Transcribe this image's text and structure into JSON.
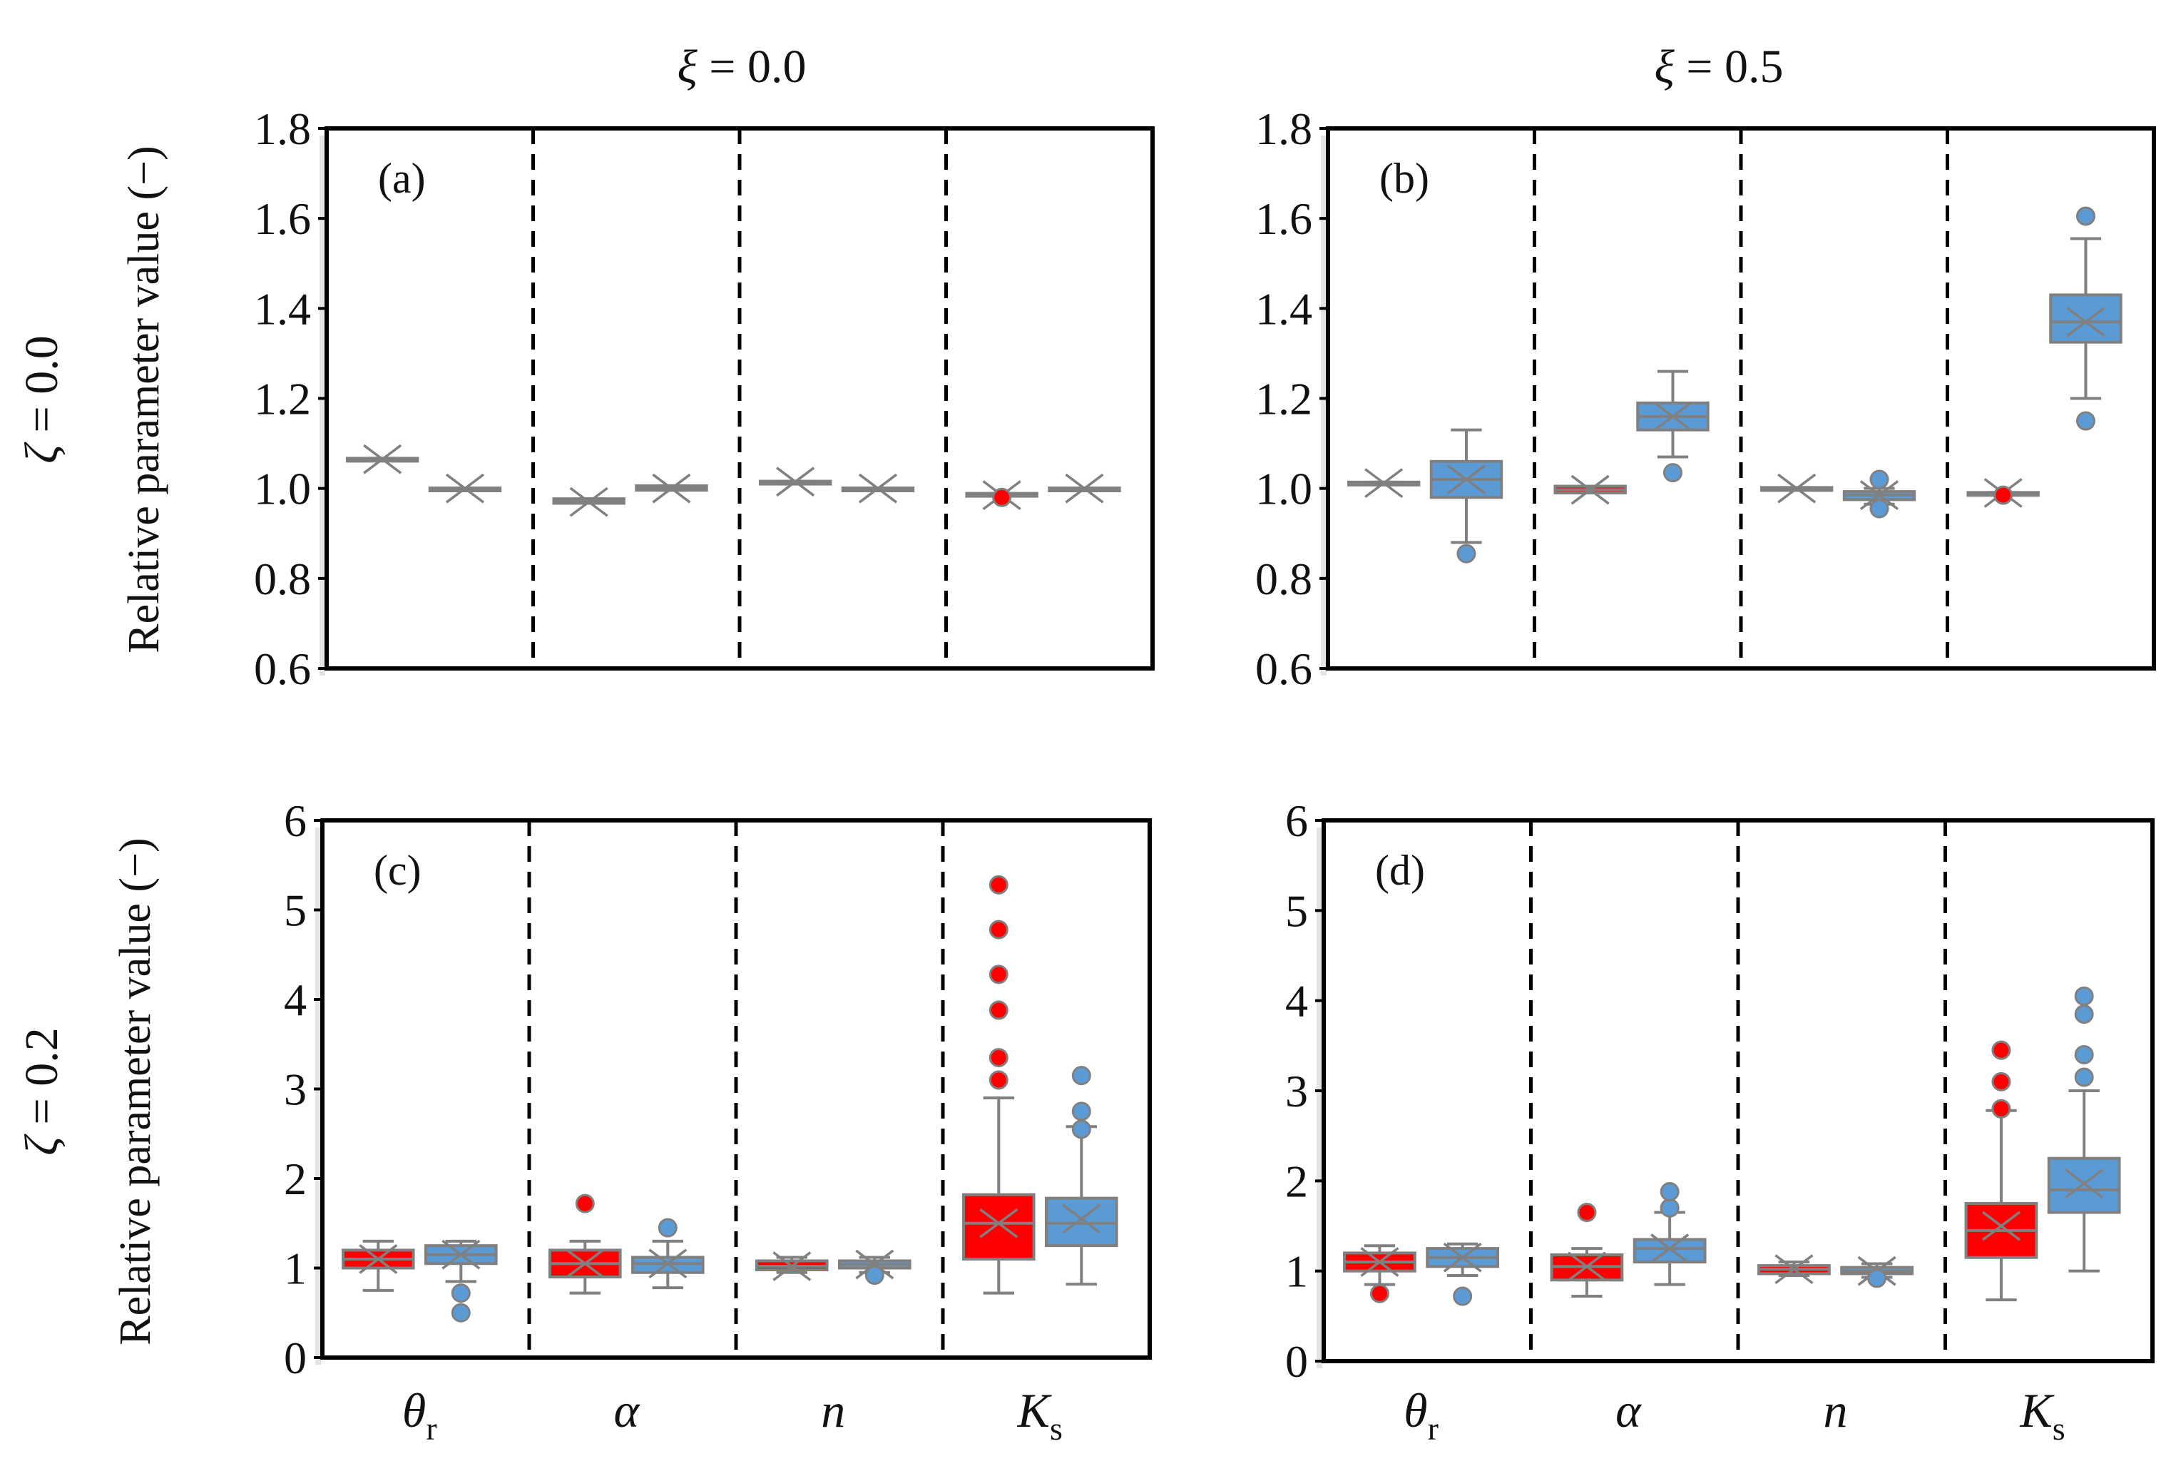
{
  "figure": {
    "col_titles": [
      {
        "var": "ξ",
        "eq": " = 0.0"
      },
      {
        "var": "ξ",
        "eq": " = 0.5"
      }
    ],
    "row_titles": [
      {
        "var": "ζ",
        "eq": " = 0.0"
      },
      {
        "var": "ζ",
        "eq": " = 0.2"
      }
    ],
    "ylabel": "Relative parameter value (−)",
    "categories": [
      {
        "main": "θ",
        "sub": "r"
      },
      {
        "main": "α",
        "sub": ""
      },
      {
        "main": "n",
        "sub": ""
      },
      {
        "main": "K",
        "sub": "s"
      }
    ],
    "colors": {
      "red_series": "#ff0000",
      "blue_series": "#5b9bd5",
      "line": "#808080",
      "axis": "#000000"
    }
  },
  "chart_data": [
    {
      "panel": "(a)",
      "type": "box",
      "ylim": [
        0.6,
        1.8
      ],
      "yticks": [
        "0.6",
        "0.8",
        "1.0",
        "1.2",
        "1.4",
        "1.6",
        "1.8"
      ],
      "yticks_values": [
        0.6,
        0.8,
        1.0,
        1.2,
        1.4,
        1.6,
        1.8
      ],
      "categories": [
        "θr",
        "α",
        "n",
        "Ks"
      ],
      "series": [
        {
          "name": "red",
          "boxes": [
            {
              "q1": 1.063,
              "median": 1.065,
              "q3": 1.067,
              "whislo": 1.063,
              "whishi": 1.067,
              "mean": 1.065,
              "fliers": []
            },
            {
              "q1": 0.967,
              "median": 0.972,
              "q3": 0.977,
              "whislo": 0.967,
              "whishi": 0.977,
              "mean": 0.97,
              "fliers": []
            },
            {
              "q1": 1.014,
              "median": 1.015,
              "q3": 1.016,
              "whislo": 1.014,
              "whishi": 1.016,
              "mean": 1.015,
              "fliers": []
            },
            {
              "q1": 0.987,
              "median": 0.988,
              "q3": 0.989,
              "whislo": 0.987,
              "whishi": 0.989,
              "mean": 0.985,
              "fliers": [
                0.98
              ]
            }
          ]
        },
        {
          "name": "blue",
          "boxes": [
            {
              "q1": 0.999,
              "median": 1.0,
              "q3": 1.001,
              "whislo": 0.999,
              "whishi": 1.001,
              "mean": 1.0,
              "fliers": []
            },
            {
              "q1": 0.996,
              "median": 1.0,
              "q3": 1.006,
              "whislo": 0.996,
              "whishi": 1.006,
              "mean": 1.0,
              "fliers": []
            },
            {
              "q1": 0.999,
              "median": 1.0,
              "q3": 1.001,
              "whislo": 0.999,
              "whishi": 1.001,
              "mean": 1.0,
              "fliers": []
            },
            {
              "q1": 0.999,
              "median": 1.0,
              "q3": 1.001,
              "whislo": 0.999,
              "whishi": 1.001,
              "mean": 1.0,
              "fliers": []
            }
          ]
        }
      ]
    },
    {
      "panel": "(b)",
      "type": "box",
      "ylim": [
        0.6,
        1.8
      ],
      "yticks": [
        "0.6",
        "0.8",
        "1.0",
        "1.2",
        "1.4",
        "1.6",
        "1.8"
      ],
      "yticks_values": [
        0.6,
        0.8,
        1.0,
        1.2,
        1.4,
        1.6,
        1.8
      ],
      "categories": [
        "θr",
        "α",
        "n",
        "Ks"
      ],
      "series": [
        {
          "name": "red",
          "boxes": [
            {
              "q1": 1.01,
              "median": 1.012,
              "q3": 1.014,
              "whislo": 1.01,
              "whishi": 1.014,
              "mean": 1.012,
              "fliers": []
            },
            {
              "q1": 0.99,
              "median": 0.997,
              "q3": 1.005,
              "whislo": 0.99,
              "whishi": 1.005,
              "mean": 0.997,
              "fliers": []
            },
            {
              "q1": 0.998,
              "median": 1.0,
              "q3": 1.002,
              "whislo": 0.998,
              "whishi": 1.002,
              "mean": 1.0,
              "fliers": []
            },
            {
              "q1": 0.99,
              "median": 0.99,
              "q3": 0.991,
              "whislo": 0.99,
              "whishi": 0.991,
              "mean": 0.99,
              "fliers": [
                0.985
              ]
            }
          ]
        },
        {
          "name": "blue",
          "boxes": [
            {
              "q1": 0.98,
              "median": 1.02,
              "q3": 1.06,
              "whislo": 0.88,
              "whishi": 1.13,
              "mean": 1.02,
              "fliers": [
                0.855
              ]
            },
            {
              "q1": 1.13,
              "median": 1.16,
              "q3": 1.19,
              "whislo": 1.07,
              "whishi": 1.26,
              "mean": 1.16,
              "fliers": [
                1.035
              ]
            },
            {
              "q1": 0.975,
              "median": 0.985,
              "q3": 0.993,
              "whislo": 0.965,
              "whishi": 1.0,
              "mean": 0.985,
              "fliers": [
                0.955,
                1.02
              ]
            },
            {
              "q1": 1.325,
              "median": 1.37,
              "q3": 1.43,
              "whislo": 1.2,
              "whishi": 1.555,
              "mean": 1.37,
              "fliers": [
                1.15,
                1.605
              ]
            }
          ]
        }
      ]
    },
    {
      "panel": "(c)",
      "type": "box",
      "ylim": [
        0,
        6
      ],
      "yticks": [
        "0",
        "1",
        "2",
        "3",
        "4",
        "5",
        "6"
      ],
      "yticks_values": [
        0,
        1,
        2,
        3,
        4,
        5,
        6
      ],
      "categories": [
        "θr",
        "α",
        "n",
        "Ks"
      ],
      "series": [
        {
          "name": "red",
          "boxes": [
            {
              "q1": 1.0,
              "median": 1.1,
              "q3": 1.2,
              "whislo": 0.75,
              "whishi": 1.3,
              "mean": 1.1,
              "fliers": []
            },
            {
              "q1": 0.9,
              "median": 1.05,
              "q3": 1.2,
              "whislo": 0.72,
              "whishi": 1.3,
              "mean": 1.05,
              "fliers": [
                1.72
              ]
            },
            {
              "q1": 0.98,
              "median": 1.02,
              "q3": 1.08,
              "whislo": 0.95,
              "whishi": 1.12,
              "mean": 1.02,
              "fliers": []
            },
            {
              "q1": 1.1,
              "median": 1.5,
              "q3": 1.82,
              "whislo": 0.72,
              "whishi": 2.9,
              "mean": 1.5,
              "fliers": [
                3.1,
                3.35,
                3.88,
                4.28,
                4.78,
                5.28
              ]
            }
          ]
        },
        {
          "name": "blue",
          "boxes": [
            {
              "q1": 1.05,
              "median": 1.15,
              "q3": 1.25,
              "whislo": 0.85,
              "whishi": 1.3,
              "mean": 1.15,
              "fliers": [
                0.5,
                0.72
              ]
            },
            {
              "q1": 0.95,
              "median": 1.05,
              "q3": 1.12,
              "whislo": 0.78,
              "whishi": 1.3,
              "mean": 1.05,
              "fliers": [
                1.45
              ]
            },
            {
              "q1": 1.0,
              "median": 1.04,
              "q3": 1.08,
              "whislo": 0.95,
              "whishi": 1.12,
              "mean": 1.04,
              "fliers": [
                0.92
              ]
            },
            {
              "q1": 1.25,
              "median": 1.5,
              "q3": 1.78,
              "whislo": 0.82,
              "whishi": 2.58,
              "mean": 1.55,
              "fliers": [
                2.55,
                2.75,
                3.15
              ]
            }
          ]
        }
      ]
    },
    {
      "panel": "(d)",
      "type": "box",
      "ylim": [
        0,
        6
      ],
      "yticks": [
        "0",
        "1",
        "2",
        "3",
        "4",
        "5",
        "6"
      ],
      "yticks_values": [
        0,
        1,
        2,
        3,
        4,
        5,
        6
      ],
      "categories": [
        "θr",
        "α",
        "n",
        "Ks"
      ],
      "series": [
        {
          "name": "red",
          "boxes": [
            {
              "q1": 1.0,
              "median": 1.1,
              "q3": 1.2,
              "whislo": 0.85,
              "whishi": 1.28,
              "mean": 1.1,
              "fliers": [
                0.75
              ]
            },
            {
              "q1": 0.9,
              "median": 1.05,
              "q3": 1.18,
              "whislo": 0.72,
              "whishi": 1.25,
              "mean": 1.05,
              "fliers": [
                1.65
              ]
            },
            {
              "q1": 0.97,
              "median": 1.02,
              "q3": 1.06,
              "whislo": 0.95,
              "whishi": 1.1,
              "mean": 1.02,
              "fliers": []
            },
            {
              "q1": 1.15,
              "median": 1.45,
              "q3": 1.75,
              "whislo": 0.68,
              "whishi": 2.78,
              "mean": 1.5,
              "fliers": [
                2.8,
                3.1,
                3.45
              ]
            }
          ]
        },
        {
          "name": "blue",
          "boxes": [
            {
              "q1": 1.05,
              "median": 1.15,
              "q3": 1.25,
              "whislo": 0.95,
              "whishi": 1.3,
              "mean": 1.15,
              "fliers": [
                0.72
              ]
            },
            {
              "q1": 1.1,
              "median": 1.25,
              "q3": 1.35,
              "whislo": 0.85,
              "whishi": 1.65,
              "mean": 1.25,
              "fliers": [
                1.7,
                1.88
              ]
            },
            {
              "q1": 0.97,
              "median": 1.0,
              "q3": 1.04,
              "whislo": 0.93,
              "whishi": 1.08,
              "mean": 1.0,
              "fliers": [
                0.92
              ]
            },
            {
              "q1": 1.65,
              "median": 1.9,
              "q3": 2.25,
              "whislo": 1.0,
              "whishi": 3.0,
              "mean": 1.97,
              "fliers": [
                3.15,
                3.4,
                3.85,
                4.05
              ]
            }
          ]
        }
      ]
    }
  ]
}
